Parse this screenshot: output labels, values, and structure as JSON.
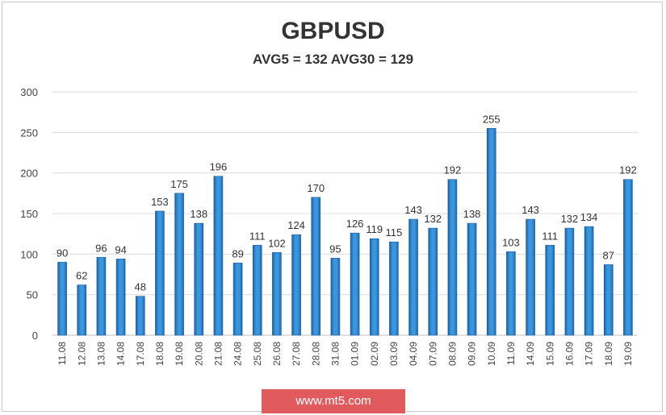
{
  "chart_data": {
    "type": "bar",
    "title": "GBPUSD",
    "subtitle": "AVG5 = 132 AVG30 = 129",
    "categories": [
      "11.08",
      "12.08",
      "13.08",
      "14.08",
      "17.08",
      "18.08",
      "19.08",
      "20.08",
      "21.08",
      "24.08",
      "25.08",
      "26.08",
      "27.08",
      "28.08",
      "31.08",
      "01.09",
      "02.09",
      "03.09",
      "04.09",
      "07.09",
      "08.09",
      "09.09",
      "10.09",
      "11.09",
      "14.09",
      "15.09",
      "16.09",
      "17.09",
      "18.09",
      "19.09"
    ],
    "values": [
      90,
      62,
      96,
      94,
      48,
      153,
      175,
      138,
      196,
      89,
      111,
      102,
      124,
      170,
      95,
      126,
      119,
      115,
      143,
      132,
      192,
      138,
      255,
      103,
      143,
      111,
      132,
      134,
      87,
      192
    ],
    "ylim": [
      0,
      300
    ],
    "yticks": [
      0,
      50,
      100,
      150,
      200,
      250,
      300
    ],
    "grid": true,
    "legend": "none",
    "bar_color": "#2e86cf"
  },
  "footer": {
    "text": "www.mt5.com"
  }
}
